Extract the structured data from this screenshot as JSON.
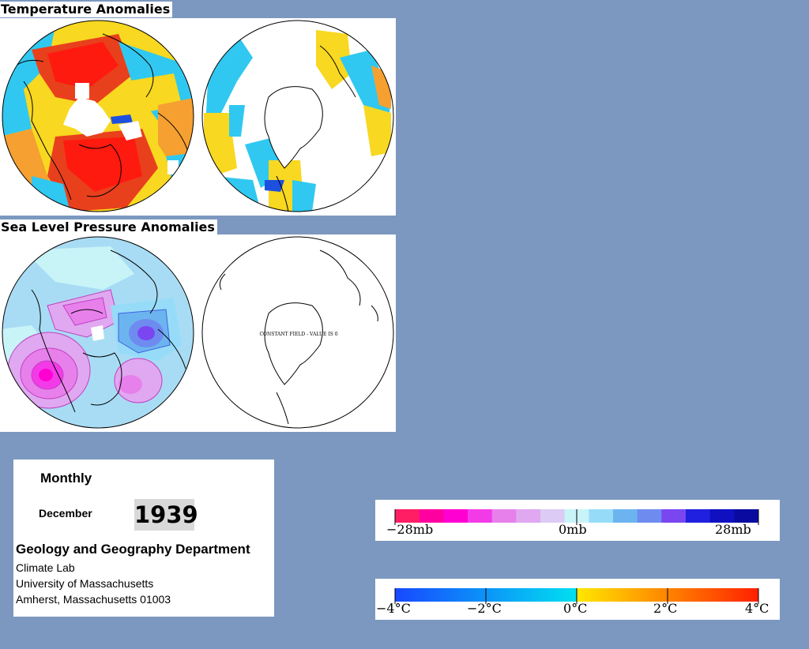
{
  "temperature": {
    "title": "Temperature Anomalies"
  },
  "pressure": {
    "title": "Sea Level Pressure Anomalies",
    "constant_field_note": "CONSTANT FIELD - VALUE IS 0"
  },
  "info": {
    "period": "Monthly",
    "month": "December",
    "year": "1939",
    "department": "Geology and Geography Department",
    "lab": "Climate Lab",
    "university": "University of Massachusetts",
    "address": "Amherst, Massachusetts 01003"
  },
  "pressure_legend": {
    "labels": [
      "−28mb",
      "0mb",
      "28mb"
    ],
    "colors": [
      "#ff1e64",
      "#ff00a0",
      "#ff00d2",
      "#f33ae8",
      "#e880ec",
      "#e0a8f0",
      "#dccbf4",
      "#c8f4f8",
      "#96dcf8",
      "#6cb4f0",
      "#6e8cf0",
      "#7a46f0",
      "#2020e0",
      "#1010c0",
      "#0a0aa0"
    ]
  },
  "temperature_legend": {
    "labels": [
      "−4°C",
      "−2°C",
      "0°C",
      "2°C",
      "4°C"
    ],
    "low_color": "#1848ff",
    "mid_low_color": "#00e0f0",
    "mid_high_color": "#ffe800",
    "high_color": "#ff2000"
  },
  "colors": {
    "background": "#7c98c0",
    "warm": "#e8401c",
    "hot": "#ff1a10",
    "mild": "#f5a030",
    "yellow": "#f8e020",
    "cool": "#30c8f0",
    "cold": "#1e50e0",
    "high_pressure": "#e070e0",
    "low_pressure": "#4060e0"
  }
}
